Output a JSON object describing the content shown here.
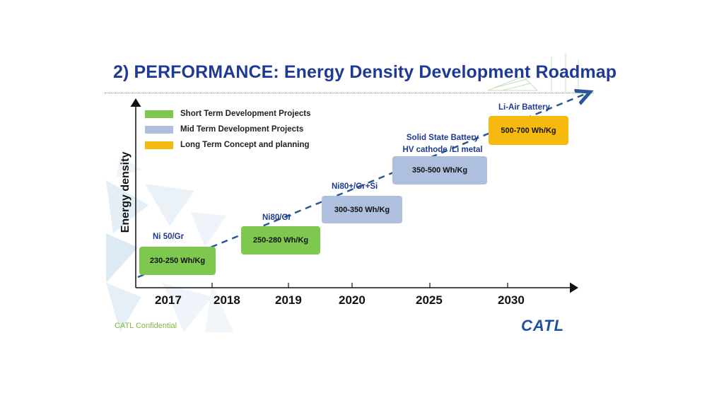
{
  "slide": {
    "title": "2) PERFORMANCE: Energy Density Development Roadmap",
    "y_axis_label": "Energy density",
    "footer_text": "CATL Confidential",
    "logo_text": "CATL"
  },
  "legend": [
    {
      "label": "Short Term Development Projects",
      "color": "#7ec850"
    },
    {
      "label": "Mid Term Development Projects",
      "color": "#aec0dd"
    },
    {
      "label": "Long Term Concept and planning",
      "color": "#f6b90e"
    }
  ],
  "years": [
    "2017",
    "2018",
    "2019",
    "2020",
    "2025",
    "2030"
  ],
  "milestones": [
    {
      "technology": "Ni 50/Gr",
      "energy_density": "230-250 Wh/Kg",
      "color": "#7ec850"
    },
    {
      "technology": "Ni80/Gr",
      "energy_density": "250-280 Wh/Kg",
      "color": "#7ec850"
    },
    {
      "technology": "Ni80+/Gr+Si",
      "energy_density": "300-350 Wh/Kg",
      "color": "#aec0dd"
    },
    {
      "technology": "Solid State Battery",
      "technology_line2": "HV cathode /Li metal",
      "energy_density": "350-500 Wh/Kg",
      "color": "#aec0dd"
    },
    {
      "technology": "Li-Air Battery",
      "energy_density": "500-700 Wh/Kg",
      "color": "#f6b90e"
    }
  ]
}
